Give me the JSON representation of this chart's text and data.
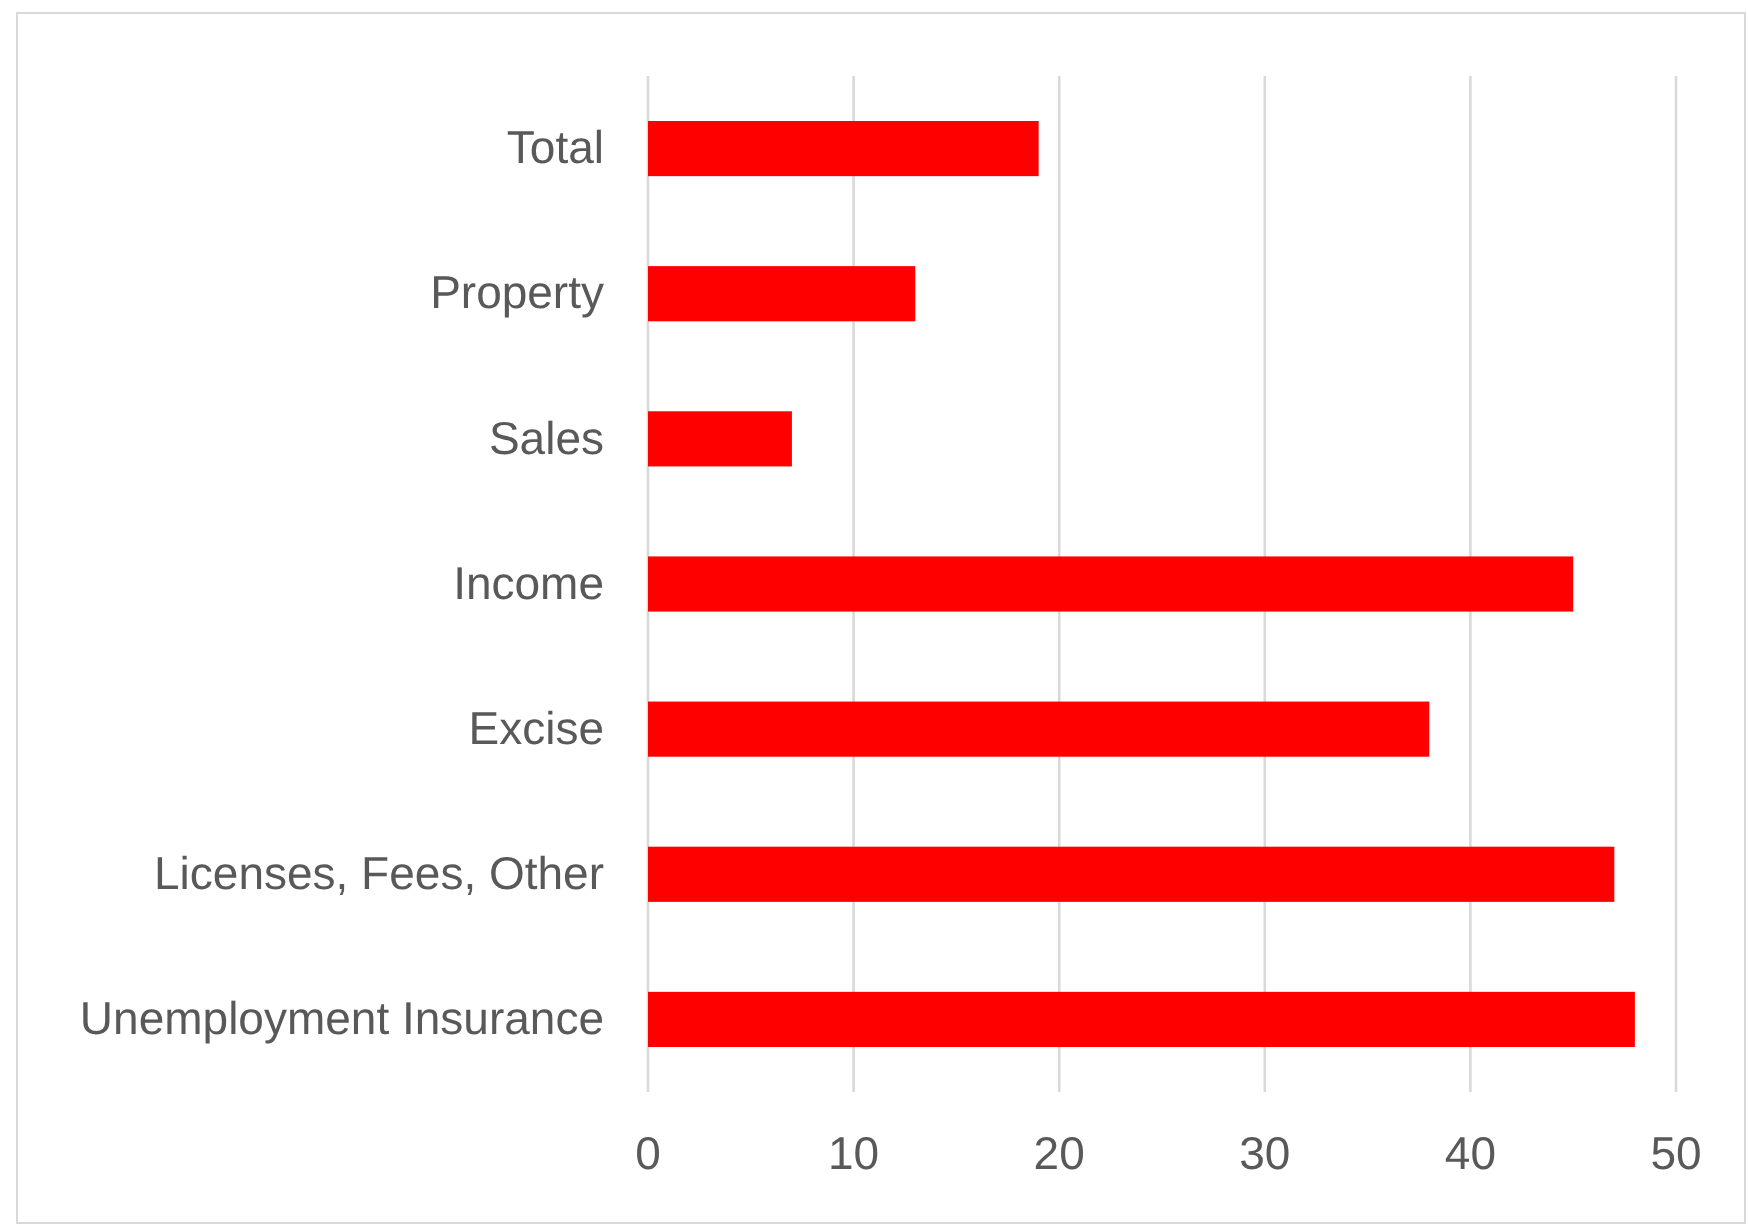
{
  "chart_data": {
    "type": "bar",
    "orientation": "horizontal",
    "categories": [
      "Total",
      "Property",
      "Sales",
      "Income",
      "Excise",
      "Licenses, Fees, Other",
      "Unemployment Insurance"
    ],
    "values": [
      19,
      13,
      7,
      45,
      38,
      47,
      48
    ],
    "color": "#ff0000",
    "xlim": [
      0,
      50
    ],
    "xticks": [
      0,
      10,
      20,
      30,
      40,
      50
    ],
    "grid": "x"
  }
}
